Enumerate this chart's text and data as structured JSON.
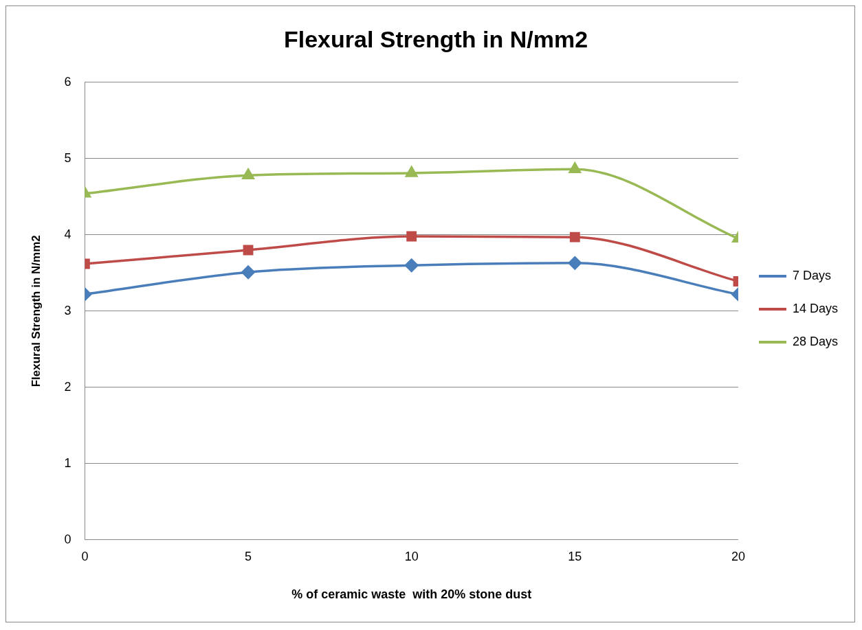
{
  "chart_data": {
    "type": "line",
    "title": "Flexural Strength in N/mm2",
    "xlabel": "% of ceramic waste  with 20% stone dust",
    "ylabel": "Flexural Strength in N/mm2",
    "x": [
      0,
      5,
      10,
      15,
      20
    ],
    "xlim": [
      0,
      20
    ],
    "xticks": [
      0,
      5,
      10,
      15,
      20
    ],
    "ylim": [
      0,
      6
    ],
    "yticks": [
      0,
      1,
      2,
      3,
      4,
      5,
      6
    ],
    "grid": "y",
    "legend": "right",
    "series": [
      {
        "name": "7 Days",
        "color": "#4a7ebb",
        "marker": "diamond",
        "values": [
          3.22,
          3.51,
          3.6,
          3.63,
          3.22
        ]
      },
      {
        "name": "14 Days",
        "color": "#be4b48",
        "marker": "square",
        "values": [
          3.62,
          3.8,
          3.98,
          3.97,
          3.39
        ]
      },
      {
        "name": "28 Days",
        "color": "#98b954",
        "marker": "triangle",
        "values": [
          4.54,
          4.78,
          4.81,
          4.86,
          3.95
        ]
      }
    ]
  }
}
